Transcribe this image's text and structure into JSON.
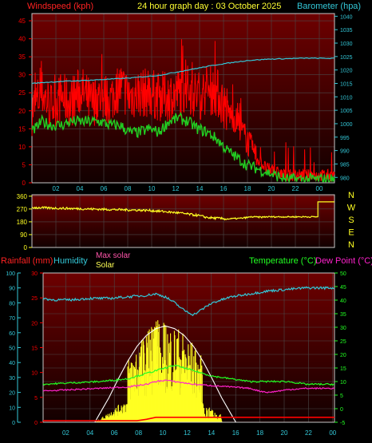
{
  "header": {
    "windspeed_label": "Windspeed (kph)",
    "title": "24 hour graph day : 03 October 2025",
    "barometer_label": "Barometer (hpa)"
  },
  "colors": {
    "background": "#000000",
    "plot_bg_top": "#6a0000",
    "plot_bg_bottom": "#150000",
    "grid": "#4a4a4a",
    "border": "#c8c8c8",
    "red": "#ff0000",
    "green": "#22cc22",
    "cyan": "#33c8d8",
    "yellow": "#ffff22",
    "magenta": "#ff22cc",
    "white": "#ffffff",
    "bright_green": "#22ff22"
  },
  "chart_data": [
    {
      "id": "wind",
      "type": "line",
      "x_ticks": [
        "02",
        "04",
        "06",
        "08",
        "10",
        "12",
        "14",
        "16",
        "18",
        "20",
        "22",
        "00"
      ],
      "left_axis": {
        "label": "Windspeed (kph)",
        "ticks": [
          0,
          5,
          10,
          15,
          20,
          25,
          30,
          35,
          40,
          45
        ],
        "range": [
          0,
          47
        ]
      },
      "right_axis": {
        "label": "Barometer (hpa)",
        "ticks": [
          980,
          985,
          990,
          995,
          1000,
          1005,
          1010,
          1015,
          1020,
          1025,
          1030,
          1035,
          1040
        ],
        "range": [
          978,
          1041
        ]
      },
      "series": [
        {
          "kind": "gust",
          "color": "red",
          "axis": "left",
          "points": [
            [
              0,
              20
            ],
            [
              1,
              25
            ],
            [
              2,
              21
            ],
            [
              3,
              24
            ],
            [
              4,
              22
            ],
            [
              5,
              26
            ],
            [
              6,
              22
            ],
            [
              7,
              24
            ],
            [
              8,
              23
            ],
            [
              9,
              27
            ],
            [
              10,
              24
            ],
            [
              11,
              25
            ],
            [
              12,
              25
            ],
            [
              13,
              24
            ],
            [
              14,
              24
            ],
            [
              15,
              25
            ],
            [
              16,
              26
            ],
            [
              17,
              24
            ],
            [
              18,
              26
            ],
            [
              19,
              25
            ],
            [
              20,
              20
            ],
            [
              21,
              17
            ],
            [
              22,
              12
            ],
            [
              23,
              7
            ],
            [
              24,
              4
            ],
            [
              25,
              3
            ],
            [
              26,
              2
            ],
            [
              27,
              2
            ],
            [
              28,
              2
            ],
            [
              29,
              2
            ],
            [
              30,
              2
            ],
            [
              31,
              2
            ]
          ]
        },
        {
          "kind": "average",
          "color": "green",
          "axis": "left",
          "points": [
            [
              0,
              14
            ],
            [
              1,
              17
            ],
            [
              2,
              16
            ],
            [
              3,
              16
            ],
            [
              4,
              17
            ],
            [
              5,
              17
            ],
            [
              6,
              17
            ],
            [
              7,
              17
            ],
            [
              8,
              16
            ],
            [
              9,
              16
            ],
            [
              10,
              14
            ],
            [
              11,
              14
            ],
            [
              12,
              15
            ],
            [
              13,
              14
            ],
            [
              14,
              17
            ],
            [
              15,
              18
            ],
            [
              16,
              17
            ],
            [
              17,
              15
            ],
            [
              18,
              14
            ],
            [
              19,
              12
            ],
            [
              20,
              9
            ],
            [
              21,
              7
            ],
            [
              22,
              5
            ],
            [
              23,
              4
            ],
            [
              24,
              3
            ],
            [
              25,
              2
            ],
            [
              26,
              1
            ],
            [
              27,
              1
            ],
            [
              28,
              1
            ],
            [
              29,
              1
            ],
            [
              30,
              1
            ]
          ]
        },
        {
          "kind": "barometer",
          "color": "cyan",
          "axis": "right",
          "points": [
            [
              0,
              1015
            ],
            [
              1.4,
              1015.4
            ],
            [
              3.5,
              1015.8
            ],
            [
              6,
              1016.2
            ],
            [
              10,
              1017
            ],
            [
              13,
              1018
            ],
            [
              16,
              1020
            ],
            [
              19,
              1022
            ],
            [
              22,
              1023.5
            ],
            [
              24,
              1024
            ],
            [
              28,
              1024.4
            ],
            [
              31,
              1024.3
            ]
          ]
        }
      ]
    },
    {
      "id": "direction",
      "type": "line",
      "x_ticks": [],
      "left_axis": {
        "ticks": [
          0,
          90,
          180,
          270,
          360
        ],
        "range": [
          0,
          370
        ]
      },
      "compass": [
        "N",
        "W",
        "S",
        "E",
        "N"
      ],
      "series": [
        {
          "kind": "direction",
          "color": "yellow",
          "points": [
            [
              0,
              280
            ],
            [
              3,
              275
            ],
            [
              6,
              270
            ],
            [
              9,
              265
            ],
            [
              12,
              260
            ],
            [
              13.5,
              252
            ],
            [
              15,
              243
            ],
            [
              17,
              225
            ],
            [
              18,
              210
            ],
            [
              20,
              200
            ],
            [
              21.5,
              205
            ],
            [
              22.5,
              215
            ],
            [
              23.5,
              212
            ],
            [
              24,
              215
            ],
            [
              25,
              215
            ],
            [
              26,
              215
            ],
            [
              27,
              215
            ],
            [
              28,
              215
            ],
            [
              29,
              215
            ],
            [
              29.3,
              215
            ],
            [
              29.3,
              320
            ],
            [
              31,
              320
            ]
          ]
        }
      ]
    },
    {
      "id": "temperature",
      "type": "line",
      "x_ticks": [
        "02",
        "04",
        "06",
        "08",
        "10",
        "12",
        "14",
        "16",
        "18",
        "20",
        "22",
        "00"
      ],
      "rain_axis": {
        "label": "Rainfall (mm)",
        "ticks": [
          0,
          5,
          10,
          15,
          20,
          25,
          30
        ],
        "range": [
          0,
          30
        ]
      },
      "humidity_axis": {
        "label": "Humidity",
        "ticks": [
          0,
          10,
          20,
          30,
          40,
          50,
          60,
          70,
          80,
          90,
          100
        ],
        "range": [
          0,
          100
        ]
      },
      "temperature_axis": {
        "label": "Temperature (°C)",
        "ticks": [
          -5,
          0,
          5,
          10,
          15,
          20,
          25,
          30,
          35,
          40,
          45,
          50
        ],
        "range": [
          -5,
          50
        ]
      },
      "solar_labels": {
        "max": "Max solar",
        "solar": "Solar"
      },
      "dewpoint_label": "Dew Point (°C)",
      "series": [
        {
          "kind": "humidity",
          "color": "cyan",
          "points": [
            [
              0,
              83
            ],
            [
              1,
              82
            ],
            [
              3,
              82
            ],
            [
              5,
              83
            ],
            [
              7,
              83
            ],
            [
              9,
              84
            ],
            [
              11,
              85
            ],
            [
              12,
              86
            ],
            [
              13,
              84
            ],
            [
              14,
              80
            ],
            [
              15,
              75
            ],
            [
              16,
              72
            ],
            [
              17,
              76
            ],
            [
              18,
              80
            ],
            [
              19,
              82
            ],
            [
              20,
              84
            ],
            [
              22,
              86
            ],
            [
              24,
              88
            ],
            [
              26,
              89
            ],
            [
              28,
              90
            ],
            [
              31,
              90
            ]
          ]
        },
        {
          "kind": "temperature",
          "color": "green",
          "points": [
            [
              0,
              9
            ],
            [
              3,
              9.5
            ],
            [
              6,
              10
            ],
            [
              9,
              11
            ],
            [
              11,
              13
            ],
            [
              12,
              14
            ],
            [
              13,
              15
            ],
            [
              14,
              16
            ],
            [
              15,
              15
            ],
            [
              16,
              14
            ],
            [
              18,
              12
            ],
            [
              20,
              11
            ],
            [
              22,
              10
            ],
            [
              24,
              10
            ],
            [
              26,
              10
            ],
            [
              28,
              9
            ],
            [
              31,
              9
            ]
          ]
        },
        {
          "kind": "dewpoint",
          "color": "magenta",
          "points": [
            [
              0,
              6.5
            ],
            [
              3,
              7
            ],
            [
              6,
              7.5
            ],
            [
              9,
              8
            ],
            [
              11,
              9
            ],
            [
              12,
              10
            ],
            [
              13,
              10.5
            ],
            [
              14,
              10
            ],
            [
              15,
              9.5
            ],
            [
              16,
              9
            ],
            [
              18,
              8.5
            ],
            [
              20,
              8
            ],
            [
              22,
              7.5
            ],
            [
              23,
              6.5
            ],
            [
              24,
              6
            ],
            [
              26,
              7
            ],
            [
              28,
              7.5
            ],
            [
              31,
              7.5
            ]
          ]
        },
        {
          "kind": "rainfall",
          "color": "red",
          "points": [
            [
              0,
              0.3
            ],
            [
              10,
              0.3
            ],
            [
              11,
              0.6
            ],
            [
              12,
              1.0
            ],
            [
              17,
              1.0
            ],
            [
              19,
              1.0
            ],
            [
              31,
              1.0
            ]
          ]
        },
        {
          "kind": "max_solar",
          "color": "white",
          "points": [
            [
              5.5,
              -5
            ],
            [
              6,
              -2
            ],
            [
              7,
              4
            ],
            [
              8,
              11
            ],
            [
              9,
              17.5
            ],
            [
              10,
              23
            ],
            [
              11,
              27
            ],
            [
              12,
              29.5
            ],
            [
              13,
              30.5
            ],
            [
              14,
              29.5
            ],
            [
              15,
              27
            ],
            [
              16,
              23
            ],
            [
              17,
              17.5
            ],
            [
              18,
              11
            ],
            [
              19,
              4
            ],
            [
              20,
              -2
            ],
            [
              20.5,
              -5
            ]
          ]
        }
      ]
    }
  ]
}
